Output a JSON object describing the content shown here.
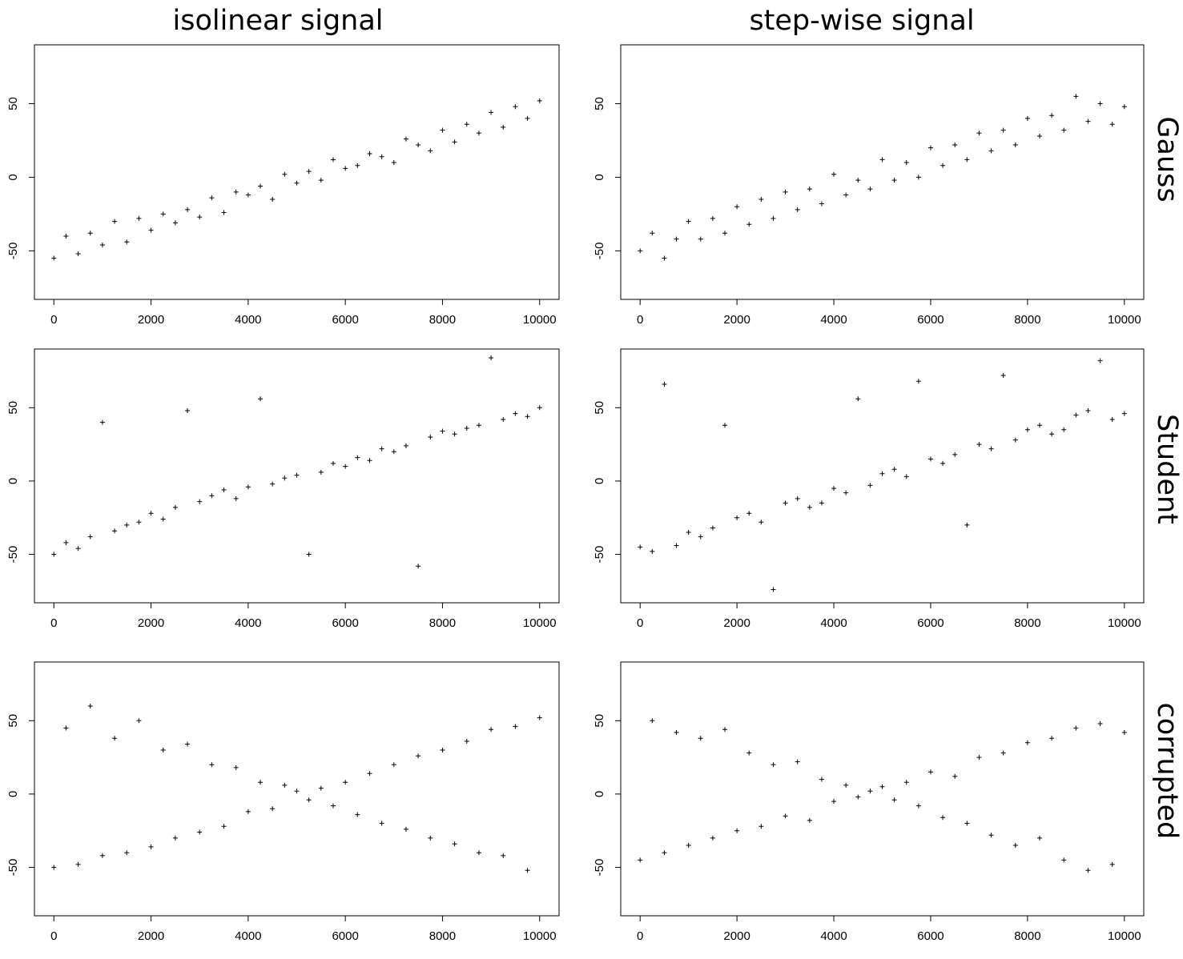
{
  "column_titles": [
    "isolinear signal",
    "step-wise signal"
  ],
  "row_labels": [
    "Gauss",
    "Student",
    "corrupted"
  ],
  "chart_data": [
    {
      "type": "scatter",
      "xlim": [
        -400,
        10400
      ],
      "ylim": [
        -83,
        90
      ],
      "xticks": [
        0,
        2000,
        4000,
        6000,
        8000,
        10000
      ],
      "yticks": [
        -50,
        0,
        50
      ],
      "color": "#000000",
      "x": [
        0,
        250,
        500,
        750,
        1000,
        1250,
        1500,
        1750,
        2000,
        2250,
        2500,
        2750,
        3000,
        3250,
        3500,
        3750,
        4000,
        4250,
        4500,
        4750,
        5000,
        5250,
        5500,
        5750,
        6000,
        6250,
        6500,
        6750,
        7000,
        7250,
        7500,
        7750,
        8000,
        8250,
        8500,
        8750,
        9000,
        9250,
        9500,
        9750,
        10000
      ],
      "y": [
        -55,
        -40,
        -52,
        -38,
        -46,
        -30,
        -44,
        -28,
        -36,
        -25,
        -31,
        -22,
        -27,
        -14,
        -24,
        -10,
        -12,
        -6,
        -15,
        2,
        -4,
        4,
        -2,
        12,
        6,
        8,
        16,
        14,
        10,
        26,
        22,
        18,
        32,
        24,
        36,
        30,
        44,
        34,
        48,
        40,
        52
      ]
    },
    {
      "type": "scatter",
      "xlim": [
        -400,
        10400
      ],
      "ylim": [
        -83,
        90
      ],
      "xticks": [
        0,
        2000,
        4000,
        6000,
        8000,
        10000
      ],
      "yticks": [
        -50,
        0,
        50
      ],
      "color": "#000000",
      "x": [
        0,
        250,
        500,
        750,
        1000,
        1250,
        1500,
        1750,
        2000,
        2250,
        2500,
        2750,
        3000,
        3250,
        3500,
        3750,
        4000,
        4250,
        4500,
        4750,
        5000,
        5250,
        5500,
        5750,
        6000,
        6250,
        6500,
        6750,
        7000,
        7250,
        7500,
        7750,
        8000,
        8250,
        8500,
        8750,
        9000,
        9250,
        9500,
        9750,
        10000
      ],
      "y": [
        -50,
        -38,
        -55,
        -42,
        -30,
        -42,
        -28,
        -38,
        -20,
        -32,
        -15,
        -28,
        -10,
        -22,
        -8,
        -18,
        2,
        -12,
        -2,
        -8,
        12,
        -2,
        10,
        0,
        20,
        8,
        22,
        12,
        30,
        18,
        32,
        22,
        40,
        28,
        42,
        32,
        55,
        38,
        50,
        36,
        48
      ]
    },
    {
      "type": "scatter",
      "xlim": [
        -400,
        10400
      ],
      "ylim": [
        -83,
        90
      ],
      "xticks": [
        0,
        2000,
        4000,
        6000,
        8000,
        10000
      ],
      "yticks": [
        -50,
        0,
        50
      ],
      "color": "#000000",
      "x": [
        0,
        250,
        500,
        750,
        1000,
        1250,
        1500,
        1750,
        2000,
        2250,
        2500,
        2750,
        3000,
        3250,
        3500,
        3750,
        4000,
        4250,
        4500,
        4750,
        5000,
        5250,
        5500,
        5750,
        6000,
        6250,
        6500,
        6750,
        7000,
        7250,
        7500,
        7750,
        8000,
        8250,
        8500,
        8750,
        9000,
        9250,
        9500,
        9750,
        10000
      ],
      "y": [
        -50,
        -42,
        -46,
        -38,
        40,
        -34,
        -30,
        -28,
        -22,
        -26,
        -18,
        48,
        -14,
        -10,
        -6,
        -12,
        -4,
        56,
        -2,
        2,
        4,
        -50,
        6,
        12,
        10,
        16,
        14,
        22,
        20,
        24,
        -58,
        30,
        34,
        32,
        36,
        38,
        84,
        42,
        46,
        44,
        50
      ]
    },
    {
      "type": "scatter",
      "xlim": [
        -400,
        10400
      ],
      "ylim": [
        -83,
        90
      ],
      "xticks": [
        0,
        2000,
        4000,
        6000,
        8000,
        10000
      ],
      "yticks": [
        -50,
        0,
        50
      ],
      "color": "#000000",
      "x": [
        0,
        250,
        500,
        750,
        1000,
        1250,
        1500,
        1750,
        2000,
        2250,
        2500,
        2750,
        3000,
        3250,
        3500,
        3750,
        4000,
        4250,
        4500,
        4750,
        5000,
        5250,
        5500,
        5750,
        6000,
        6250,
        6500,
        6750,
        7000,
        7250,
        7500,
        7750,
        8000,
        8250,
        8500,
        8750,
        9000,
        9250,
        9500,
        9750,
        10000
      ],
      "y": [
        -45,
        -48,
        66,
        -44,
        -35,
        -38,
        -32,
        38,
        -25,
        -22,
        -28,
        -74,
        -15,
        -12,
        -18,
        -15,
        -5,
        -8,
        56,
        -3,
        5,
        8,
        3,
        68,
        15,
        12,
        18,
        -30,
        25,
        22,
        72,
        28,
        35,
        38,
        32,
        35,
        45,
        48,
        82,
        42,
        46
      ]
    },
    {
      "type": "scatter",
      "xlim": [
        -400,
        10400
      ],
      "ylim": [
        -83,
        90
      ],
      "xticks": [
        0,
        2000,
        4000,
        6000,
        8000,
        10000
      ],
      "yticks": [
        -50,
        0,
        50
      ],
      "color": "#000000",
      "x": [
        0,
        250,
        500,
        750,
        1000,
        1250,
        1500,
        1750,
        2000,
        2250,
        2500,
        2750,
        3000,
        3250,
        3500,
        3750,
        4000,
        4250,
        4500,
        4750,
        5000,
        5250,
        5500,
        5750,
        6000,
        6250,
        6500,
        6750,
        7000,
        7250,
        7500,
        7750,
        8000,
        8250,
        8500,
        8750,
        9000,
        9250,
        9500,
        9750,
        10000
      ],
      "y": [
        -50,
        45,
        -48,
        60,
        -42,
        38,
        -40,
        50,
        -36,
        30,
        -30,
        34,
        -26,
        20,
        -22,
        18,
        -12,
        8,
        -10,
        6,
        2,
        -4,
        4,
        -8,
        8,
        -14,
        14,
        -20,
        20,
        -24,
        26,
        -30,
        30,
        -34,
        36,
        -40,
        44,
        -42,
        46,
        -52,
        52
      ]
    },
    {
      "type": "scatter",
      "xlim": [
        -400,
        10400
      ],
      "ylim": [
        -83,
        90
      ],
      "xticks": [
        0,
        2000,
        4000,
        6000,
        8000,
        10000
      ],
      "yticks": [
        -50,
        0,
        50
      ],
      "color": "#000000",
      "x": [
        0,
        250,
        500,
        750,
        1000,
        1250,
        1500,
        1750,
        2000,
        2250,
        2500,
        2750,
        3000,
        3250,
        3500,
        3750,
        4000,
        4250,
        4500,
        4750,
        5000,
        5250,
        5500,
        5750,
        6000,
        6250,
        6500,
        6750,
        7000,
        7250,
        7500,
        7750,
        8000,
        8250,
        8500,
        8750,
        9000,
        9250,
        9500,
        9750,
        10000
      ],
      "y": [
        -45,
        50,
        -40,
        42,
        -35,
        38,
        -30,
        44,
        -25,
        28,
        -22,
        20,
        -15,
        22,
        -18,
        10,
        -5,
        6,
        -2,
        2,
        5,
        -4,
        8,
        -8,
        15,
        -16,
        12,
        -20,
        25,
        -28,
        28,
        -35,
        35,
        -30,
        38,
        -45,
        45,
        -52,
        48,
        -48,
        42
      ]
    }
  ]
}
